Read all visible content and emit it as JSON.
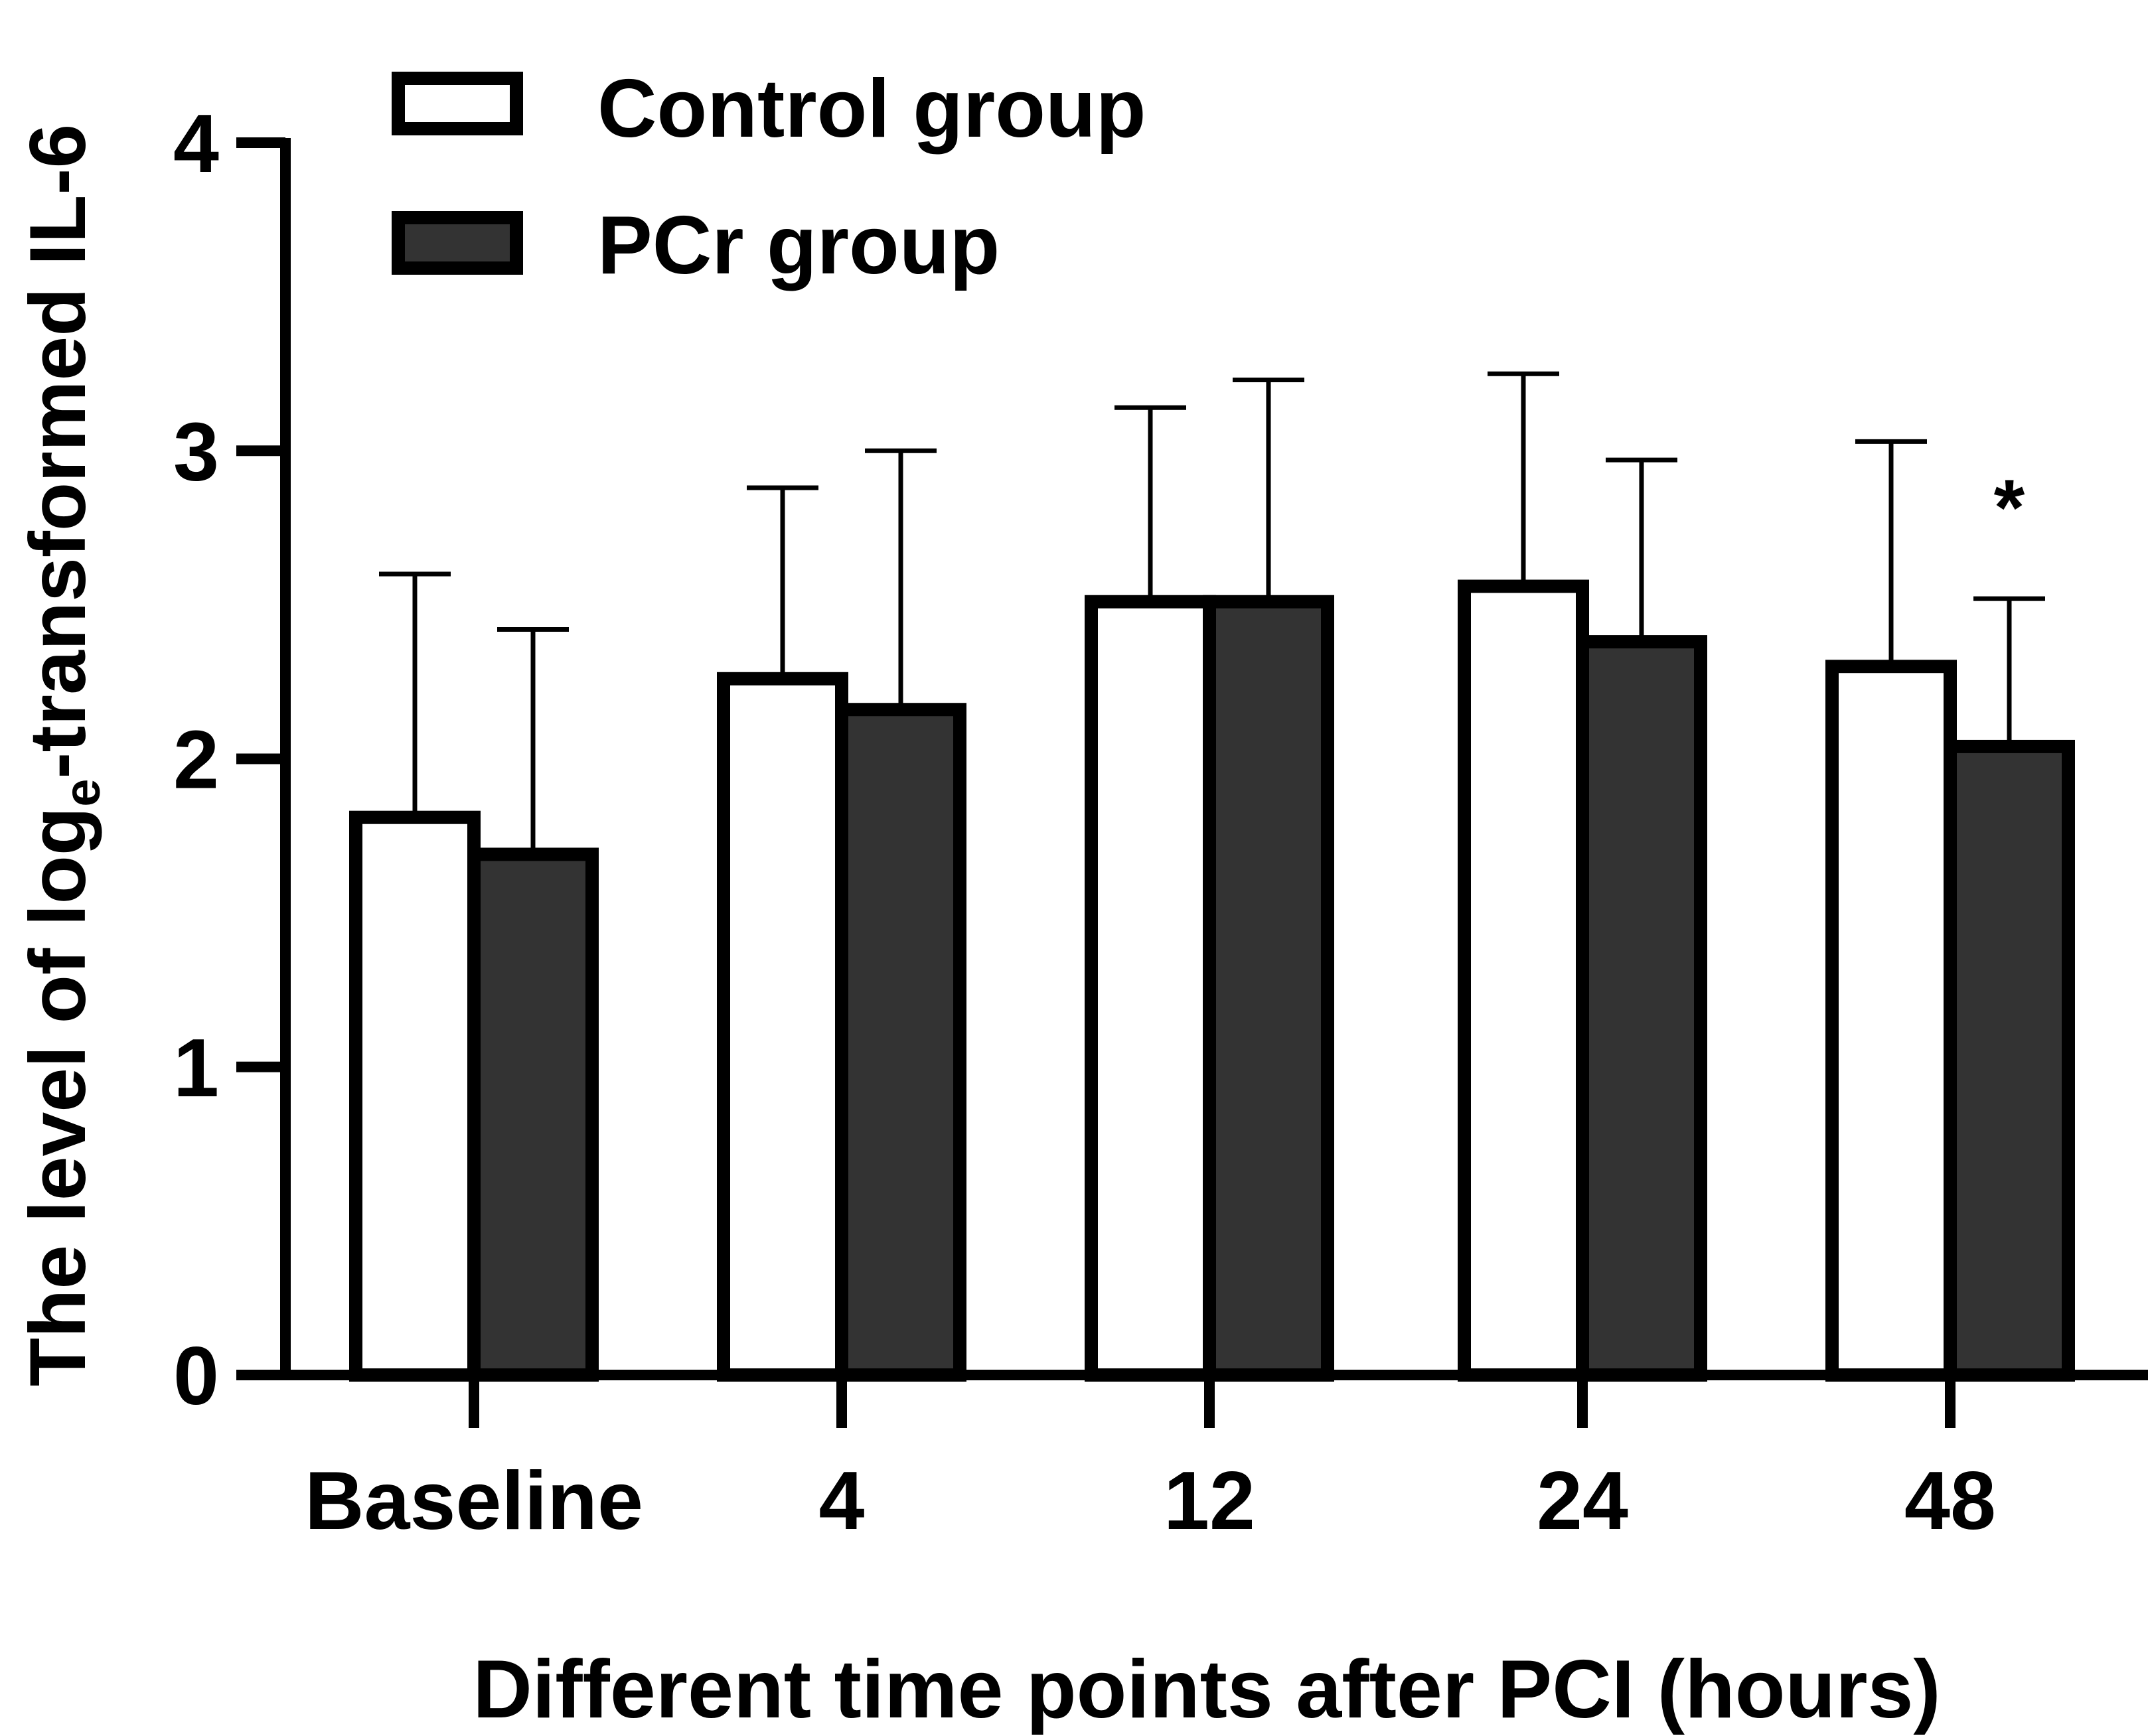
{
  "chart_data": {
    "type": "bar",
    "categories": [
      "Baseline",
      "4",
      "12",
      "24",
      "48"
    ],
    "series": [
      {
        "name": "Control group",
        "values": [
          1.81,
          2.26,
          2.51,
          2.56,
          2.3
        ],
        "error_plus": [
          0.79,
          0.62,
          0.63,
          0.69,
          0.73
        ],
        "fill": "#ffffff",
        "stroke": "#000000"
      },
      {
        "name": "PCr group",
        "values": [
          1.69,
          2.16,
          2.51,
          2.38,
          2.04
        ],
        "error_plus": [
          0.73,
          0.84,
          0.72,
          0.59,
          0.48
        ],
        "fill": "#333333",
        "stroke": "#000000"
      }
    ],
    "significance": [
      {
        "category": "48",
        "series": "PCr group",
        "mark": "*"
      }
    ],
    "xlabel": "Different time points after PCI (hours)",
    "ylabel": {
      "prefix": "The level of log",
      "subscript": "e",
      "suffix": "-transformed IL-6"
    },
    "ylim": [
      0,
      4
    ],
    "yticks": [
      "0",
      "1",
      "2",
      "3",
      "4"
    ],
    "grid": false,
    "legend_position": "top-left"
  }
}
